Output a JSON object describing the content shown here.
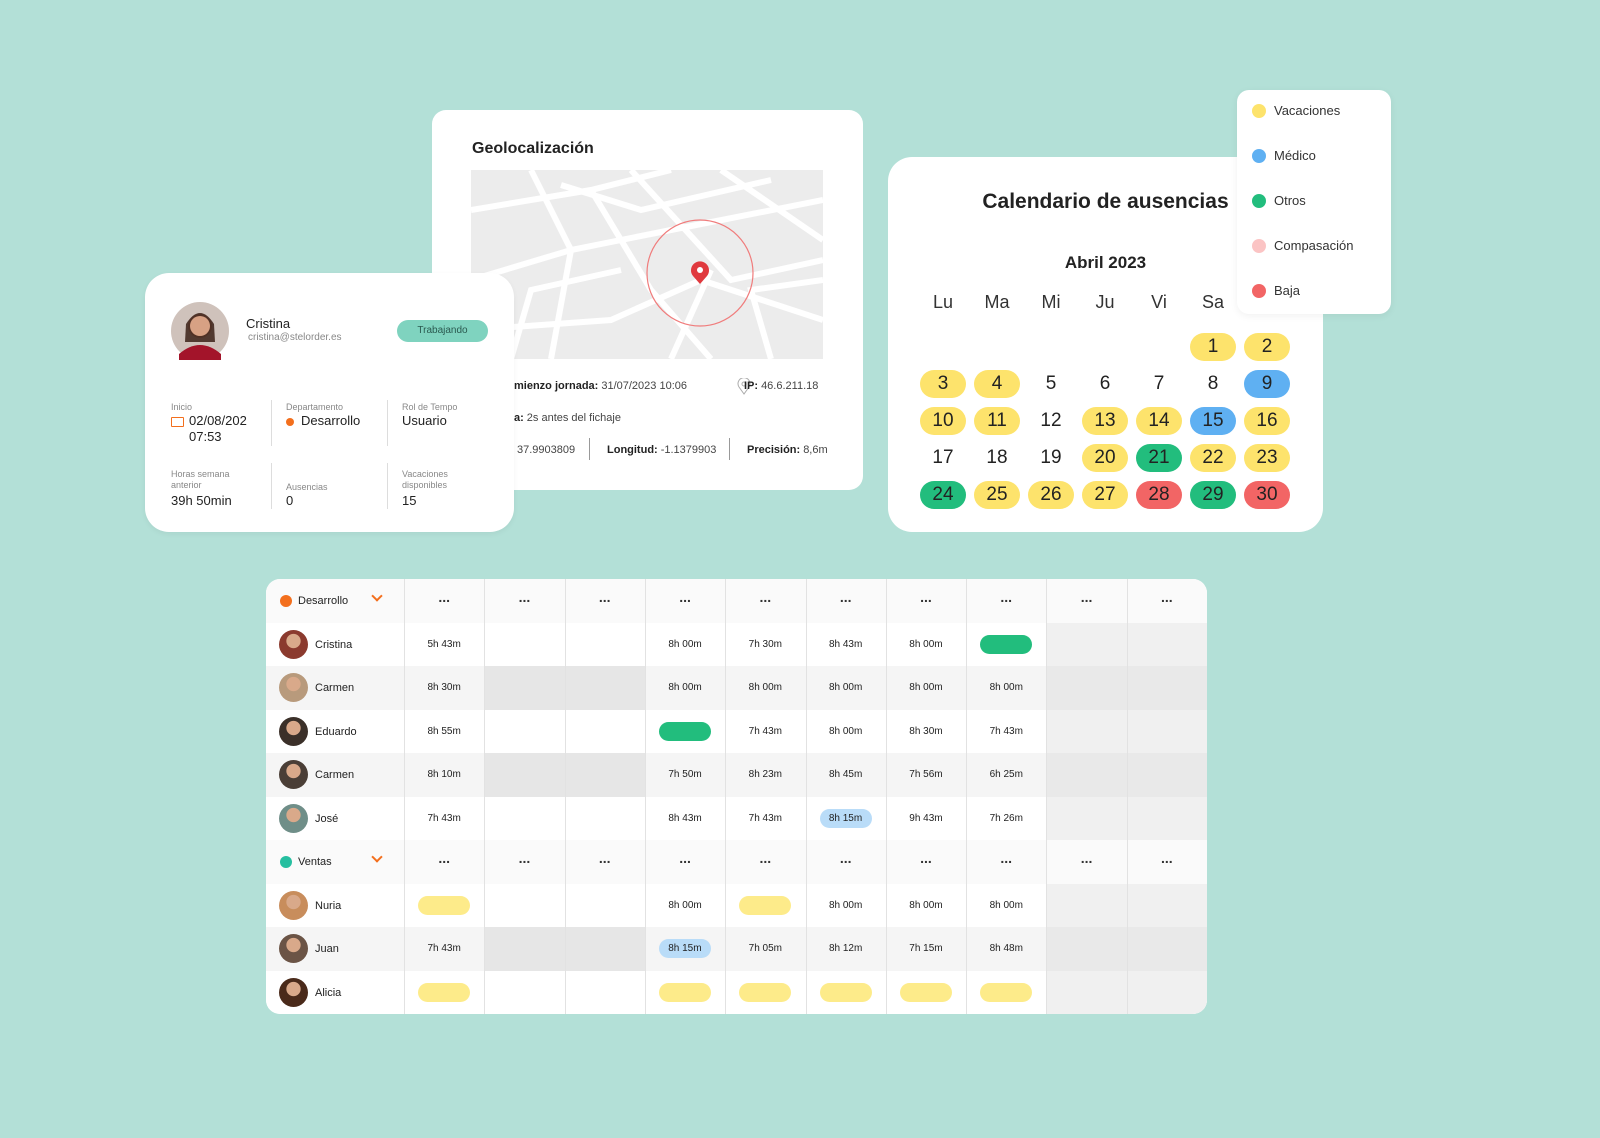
{
  "profile": {
    "name": "Cristina",
    "email": "cristina@stelorder.es",
    "status": "Trabajando",
    "fields": [
      {
        "label": "Inicio",
        "lines": [
          "02/08/202",
          "07:53"
        ]
      },
      {
        "label": "Departamento",
        "lines": [
          "Desarrollo"
        ]
      },
      {
        "label": "Rol de Tempo",
        "lines": [
          "Usuario"
        ]
      },
      {
        "label": "Horas semana anterior",
        "lines": [
          "39h 50min"
        ]
      },
      {
        "label": "Ausencias",
        "lines": [
          "0"
        ]
      },
      {
        "label": "Vacaciones disponibles",
        "lines": [
          "15"
        ]
      }
    ]
  },
  "geo": {
    "title": "Geolocalización",
    "rows": [
      [
        {
          "label": "mienzo jornada:",
          "value": "31/07/2023 10:06"
        },
        {
          "label": "IP:",
          "value": "46.6.211.18"
        }
      ],
      [
        {
          "label": "a:",
          "value": "2s antes del fichaje"
        }
      ],
      [
        {
          "value": "37.9903809"
        },
        {
          "label": "Longitud:",
          "value": "-1.1379903"
        },
        {
          "label": "Precisión:",
          "value": "8,6m"
        }
      ]
    ]
  },
  "calendar": {
    "title": "Calendario de ausencias",
    "month": "Abril 2023",
    "weekdays": [
      "Lu",
      "Ma",
      "Mi",
      "Ju",
      "Vi",
      "Sa"
    ],
    "days": [
      1,
      2,
      3,
      4,
      5,
      6,
      7,
      8,
      9,
      10,
      11,
      12,
      13,
      14,
      15,
      16,
      17,
      18,
      19,
      20,
      21,
      22,
      23,
      24,
      25,
      26,
      27,
      28,
      29,
      30
    ],
    "colors": [
      "#fde36c",
      "#fde36c",
      "#fde36c",
      "#fde36c",
      null,
      null,
      null,
      null,
      "#5fb0f2",
      "#fde36c",
      "#fde36c",
      null,
      "#fde36c",
      "#fde36c",
      "#5fb0f2",
      "#fde36c",
      null,
      null,
      null,
      "#fde36c",
      "#22bd7d",
      "#fde36c",
      "#fde36c",
      "#22bd7d",
      "#fde36c",
      "#fde36c",
      "#fde36c",
      "#f26565",
      "#22bd7d",
      "#f26565"
    ]
  },
  "legend": [
    {
      "name": "Vacaciones",
      "color": "#fde36c"
    },
    {
      "name": "Médico",
      "color": "#5fb0f2"
    },
    {
      "name": "Otros",
      "color": "#22bd7d"
    },
    {
      "name": "Compasación",
      "color": "#fbc4c4"
    },
    {
      "name": "Baja",
      "color": "#f26565"
    }
  ],
  "schedule": {
    "groups": [
      {
        "name": "Desarrollo",
        "color": "#f36f1d",
        "header": [
          "...",
          "...",
          "...",
          "...",
          "...",
          "...",
          "...",
          "...",
          "...",
          "..."
        ],
        "rows": [
          {
            "name": "Cristina",
            "cells": [
              "5h 43m",
              null,
              null,
              "8h 00m",
              "7h 30m",
              "8h 43m",
              "8h 00m",
              {
                "color": "#22bd7d"
              },
              null,
              null
            ]
          },
          {
            "name": "Carmen",
            "cells": [
              "8h 30m",
              null,
              null,
              "8h 00m",
              "8h 00m",
              "8h 00m",
              "8h 00m",
              "8h 00m",
              null,
              null
            ]
          },
          {
            "name": "Eduardo",
            "cells": [
              "8h 55m",
              null,
              null,
              {
                "color": "#22bd7d"
              },
              "7h 43m",
              "8h 00m",
              "8h 30m",
              "7h 43m",
              null,
              null
            ]
          },
          {
            "name": "Carmen",
            "cells": [
              "8h 10m",
              null,
              null,
              "7h 50m",
              "8h 23m",
              "8h 45m",
              "7h 56m",
              "6h 25m",
              null,
              null
            ]
          },
          {
            "name": "José",
            "cells": [
              "7h 43m",
              null,
              null,
              "8h 43m",
              "7h 43m",
              {
                "text": "8h 15m",
                "color": "#b9dcf8"
              },
              "9h 43m",
              "7h 26m",
              null,
              null
            ]
          }
        ]
      },
      {
        "name": "Ventas",
        "color": "#26bfa0",
        "header": [
          "...",
          "...",
          "...",
          "...",
          "...",
          "...",
          "...",
          "...",
          "...",
          "..."
        ],
        "rows": [
          {
            "name": "Nuria",
            "cells": [
              {
                "color": "#fdeb8a"
              },
              null,
              null,
              "8h 00m",
              {
                "color": "#fdeb8a"
              },
              "8h 00m",
              "8h 00m",
              "8h 00m",
              null,
              null
            ]
          },
          {
            "name": "Juan",
            "cells": [
              "7h 43m",
              null,
              null,
              {
                "text": "8h 15m",
                "color": "#b9dcf8"
              },
              "7h 05m",
              "8h 12m",
              "7h 15m",
              "8h 48m",
              null,
              null
            ]
          },
          {
            "name": "Alicia",
            "cells": [
              {
                "color": "#fdeb8a"
              },
              null,
              null,
              {
                "color": "#fdeb8a"
              },
              {
                "color": "#fdeb8a"
              },
              {
                "color": "#fdeb8a"
              },
              {
                "color": "#fdeb8a"
              },
              {
                "color": "#fdeb8a"
              },
              null,
              null
            ]
          }
        ]
      }
    ]
  }
}
